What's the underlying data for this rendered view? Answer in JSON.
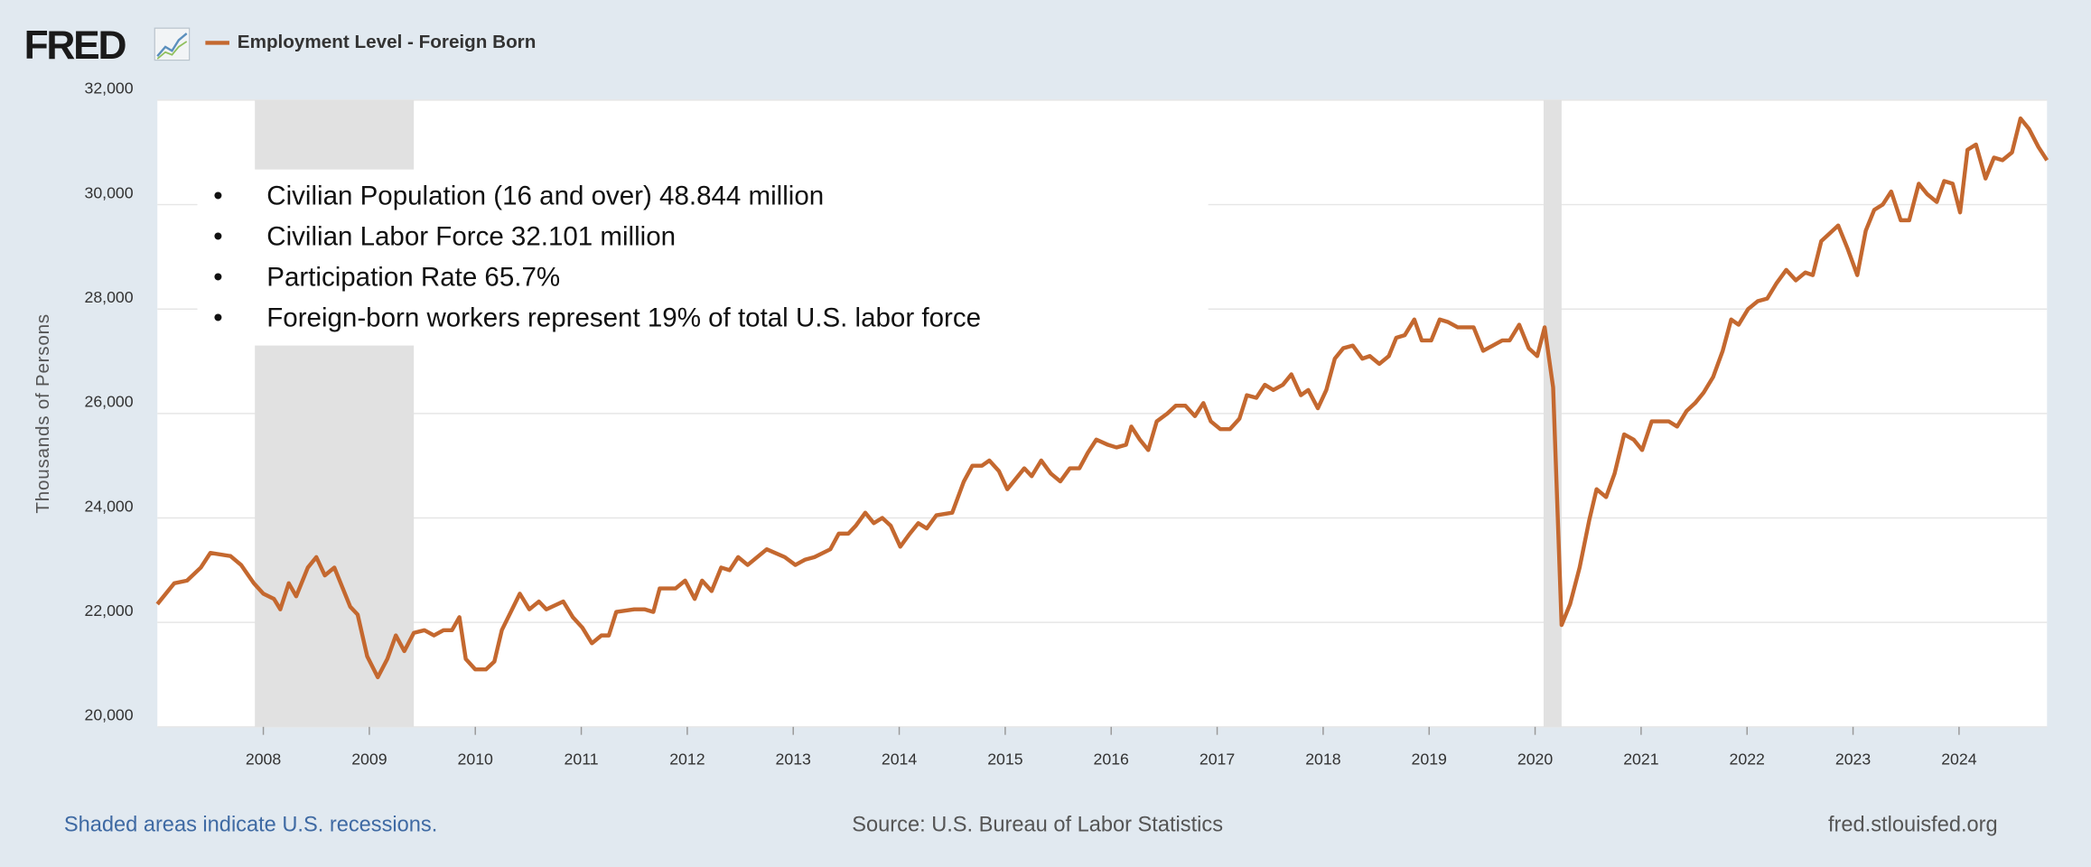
{
  "chart_data": {
    "type": "line",
    "logo": "FRED",
    "y_label": "Thousands of Persons",
    "note": "Shaded areas indicate U.S. recessions.",
    "source": "Source: U.S. Bureau of Labor Statistics",
    "site": "fred.stlouisfed.org",
    "annotations": [
      "Civilian Population (16 and over) 48.844 million",
      "Civilian Labor Force 32.101 million",
      "Participation Rate 65.7%",
      "Foreign-born workers represent 19% of total U.S. labor force"
    ],
    "grid": true,
    "xlim": [
      2007.0,
      2024.83
    ],
    "ylim": [
      20000,
      32000
    ],
    "xticks": [
      2008,
      2009,
      2010,
      2011,
      2012,
      2013,
      2014,
      2015,
      2016,
      2017,
      2018,
      2019,
      2020,
      2021,
      2022,
      2023,
      2024
    ],
    "yticks": [
      {
        "value": 20000,
        "label": "20,000"
      },
      {
        "value": 22000,
        "label": "22,000"
      },
      {
        "value": 24000,
        "label": "24,000"
      },
      {
        "value": 26000,
        "label": "26,000"
      },
      {
        "value": 28000,
        "label": "28,000"
      },
      {
        "value": 30000,
        "label": "30,000"
      },
      {
        "value": 32000,
        "label": "32,000"
      }
    ],
    "recessions": [
      [
        2007.92,
        2009.42
      ],
      [
        2020.08,
        2020.25
      ]
    ],
    "recession_color": "#e1e1e1",
    "x": [
      2007.0,
      2007.16,
      2007.28,
      2007.41,
      2007.5,
      2007.69,
      2007.79,
      2007.91,
      2008.0,
      2008.1,
      2008.16,
      2008.24,
      2008.31,
      2008.42,
      2008.5,
      2008.58,
      2008.67,
      2008.82,
      2008.89,
      2008.98,
      2009.08,
      2009.17,
      2009.25,
      2009.33,
      2009.42,
      2009.52,
      2009.61,
      2009.7,
      2009.78,
      2009.85,
      2009.91,
      2010.0,
      2010.1,
      2010.18,
      2010.25,
      2010.42,
      2010.51,
      2010.6,
      2010.67,
      2010.83,
      2010.92,
      2011.01,
      2011.1,
      2011.19,
      2011.26,
      2011.33,
      2011.5,
      2011.6,
      2011.68,
      2011.74,
      2011.89,
      2011.98,
      2012.07,
      2012.14,
      2012.23,
      2012.32,
      2012.4,
      2012.48,
      2012.57,
      2012.75,
      2012.92,
      2013.02,
      2013.11,
      2013.2,
      2013.35,
      2013.43,
      2013.52,
      2013.59,
      2013.68,
      2013.76,
      2013.84,
      2013.92,
      2014.01,
      2014.1,
      2014.18,
      2014.26,
      2014.35,
      2014.5,
      2014.61,
      2014.69,
      2014.78,
      2014.85,
      2014.94,
      2015.02,
      2015.18,
      2015.25,
      2015.34,
      2015.43,
      2015.52,
      2015.61,
      2015.7,
      2015.78,
      2015.86,
      2015.97,
      2016.05,
      2016.14,
      2016.19,
      2016.27,
      2016.35,
      2016.43,
      2016.53,
      2016.61,
      2016.7,
      2016.79,
      2016.87,
      2016.94,
      2017.03,
      2017.12,
      2017.21,
      2017.28,
      2017.37,
      2017.45,
      2017.53,
      2017.62,
      2017.7,
      2017.79,
      2017.86,
      2017.95,
      2018.03,
      2018.11,
      2018.19,
      2018.28,
      2018.37,
      2018.44,
      2018.53,
      2018.62,
      2018.69,
      2018.77,
      2018.86,
      2018.93,
      2019.02,
      2019.1,
      2019.18,
      2019.27,
      2019.42,
      2019.51,
      2019.6,
      2019.69,
      2019.76,
      2019.85,
      2019.94,
      2020.02,
      2020.09,
      2020.17,
      2020.25,
      2020.33,
      2020.42,
      2020.51,
      2020.58,
      2020.67,
      2020.75,
      2020.84,
      2020.93,
      2021.01,
      2021.1,
      2021.18,
      2021.26,
      2021.34,
      2021.43,
      2021.51,
      2021.59,
      2021.68,
      2021.77,
      2021.85,
      2021.92,
      2022.01,
      2022.1,
      2022.19,
      2022.28,
      2022.37,
      2022.46,
      2022.55,
      2022.62,
      2022.7,
      2022.78,
      2022.86,
      2022.95,
      2023.04,
      2023.12,
      2023.2,
      2023.28,
      2023.36,
      2023.45,
      2023.53,
      2023.62,
      2023.7,
      2023.79,
      2023.86,
      2023.94,
      2024.01,
      2024.08,
      2024.16,
      2024.25,
      2024.33,
      2024.41,
      2024.5,
      2024.58,
      2024.66,
      2024.75,
      2024.83
    ],
    "series": [
      {
        "name": "Employment Level - Foreign Born",
        "color": "#c4682f",
        "values": [
          22350,
          22750,
          22800,
          23050,
          23330,
          23270,
          23100,
          22750,
          22550,
          22450,
          22250,
          22750,
          22500,
          23050,
          23250,
          22900,
          23050,
          22300,
          22150,
          21350,
          20950,
          21300,
          21750,
          21450,
          21800,
          21850,
          21750,
          21850,
          21850,
          22100,
          21300,
          21100,
          21100,
          21250,
          21850,
          22550,
          22250,
          22400,
          22250,
          22400,
          22100,
          21900,
          21600,
          21750,
          21750,
          22200,
          22250,
          22250,
          22200,
          22650,
          22650,
          22800,
          22450,
          22800,
          22600,
          23050,
          23000,
          23250,
          23100,
          23400,
          23250,
          23100,
          23200,
          23250,
          23400,
          23700,
          23700,
          23850,
          24100,
          23900,
          24000,
          23850,
          23450,
          23700,
          23900,
          23800,
          24050,
          24100,
          24700,
          25000,
          25000,
          25100,
          24900,
          24550,
          24950,
          24800,
          25100,
          24850,
          24700,
          24950,
          24950,
          25250,
          25500,
          25400,
          25350,
          25400,
          25750,
          25500,
          25300,
          25850,
          26000,
          26150,
          26150,
          25950,
          26200,
          25850,
          25700,
          25700,
          25900,
          26350,
          26300,
          26550,
          26450,
          26550,
          26750,
          26350,
          26450,
          26100,
          26450,
          27050,
          27250,
          27300,
          27050,
          27100,
          26950,
          27100,
          27450,
          27500,
          27800,
          27400,
          27400,
          27800,
          27750,
          27650,
          27650,
          27200,
          27300,
          27400,
          27400,
          27700,
          27250,
          27100,
          27650,
          26500,
          21950,
          22350,
          23050,
          23950,
          24550,
          24400,
          24850,
          25600,
          25500,
          25300,
          25850,
          25850,
          25850,
          25750,
          26050,
          26200,
          26400,
          26700,
          27200,
          27800,
          27700,
          28000,
          28150,
          28200,
          28500,
          28750,
          28550,
          28700,
          28650,
          29300,
          29450,
          29600,
          29150,
          28650,
          29500,
          29900,
          30000,
          30250,
          29700,
          29700,
          30400,
          30200,
          30050,
          30450,
          30400,
          29850,
          31050,
          31150,
          30500,
          30900,
          30850,
          31000,
          31650,
          31450,
          31100,
          30850
        ]
      }
    ]
  }
}
